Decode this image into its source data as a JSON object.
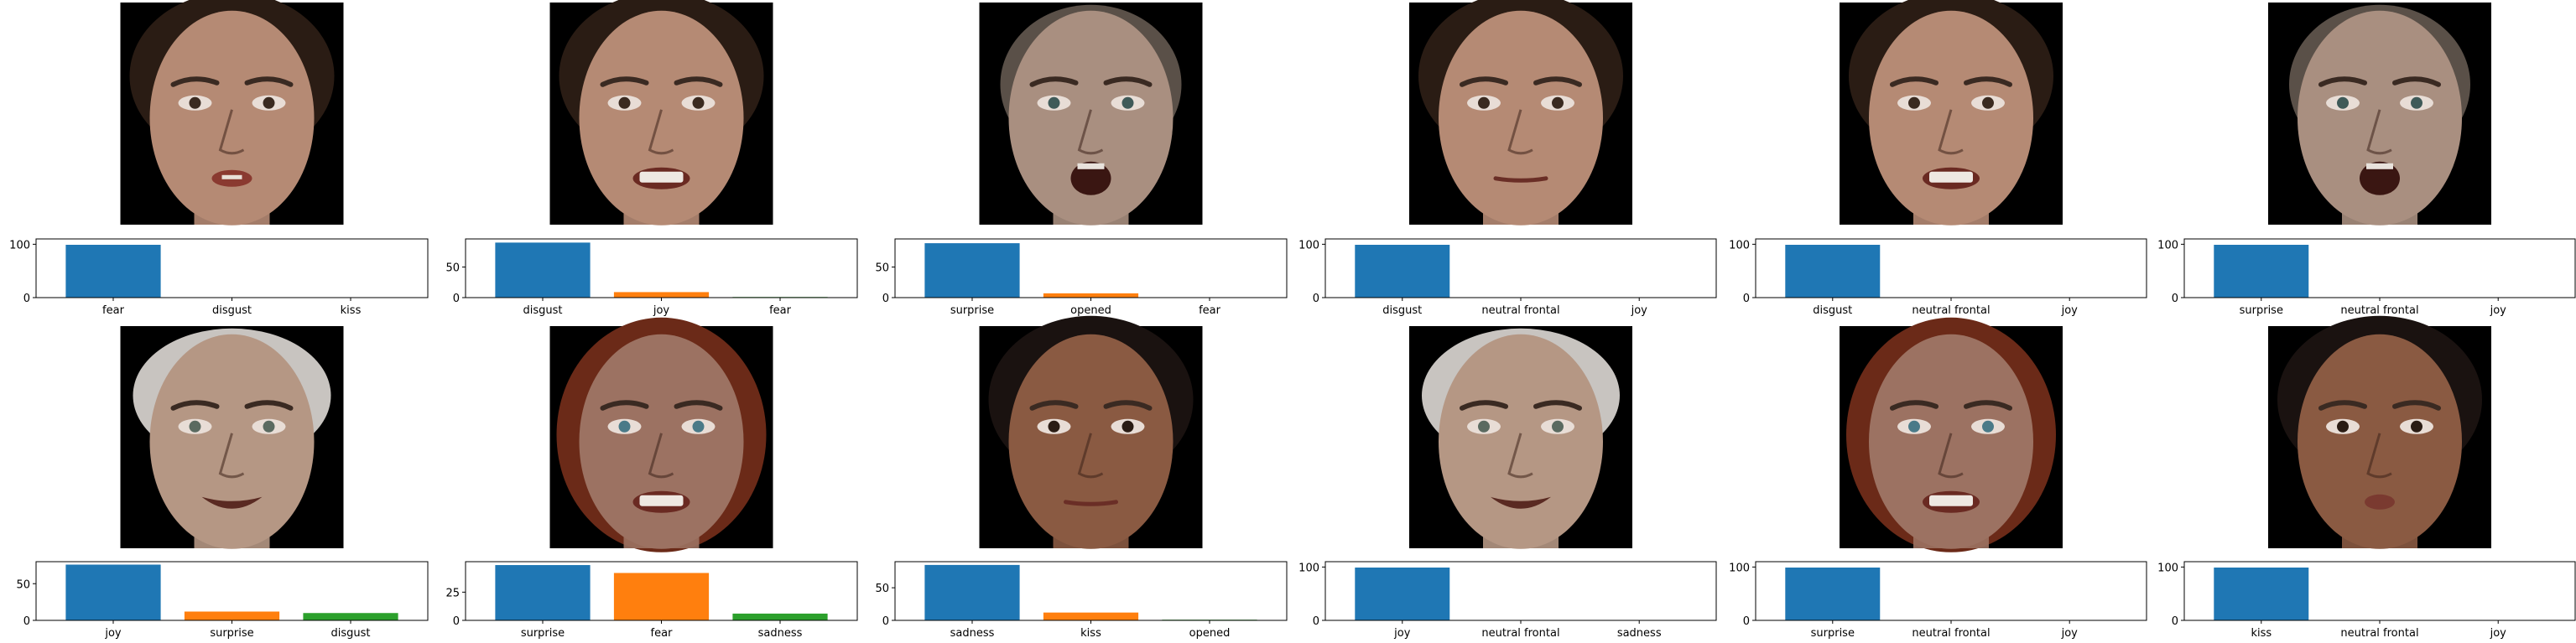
{
  "palette": {
    "c0": "#1f77b4",
    "c1": "#ff7f0e",
    "c2": "#2ca02c",
    "face_bg": "#000000"
  },
  "panels": [
    {
      "face": {
        "skin": "#b58a74",
        "hair": "#2a1c14",
        "hair_style": "short-dark",
        "eye": "#3a2a20",
        "mouth": "small-open"
      },
      "chart_data": {
        "type": "bar",
        "categories": [
          "fear",
          "disgust",
          "kiss"
        ],
        "values": [
          99,
          0,
          0
        ],
        "yticks": [
          "0",
          "100"
        ],
        "ylim": [
          0,
          110
        ]
      }
    },
    {
      "face": {
        "skin": "#b58a74",
        "hair": "#2a1c14",
        "hair_style": "short-dark",
        "eye": "#3a2a20",
        "mouth": "teeth"
      },
      "chart_data": {
        "type": "bar",
        "categories": [
          "disgust",
          "joy",
          "fear"
        ],
        "values": [
          90,
          9,
          1
        ],
        "yticks": [
          "0",
          "50"
        ],
        "ylim": [
          0,
          96
        ]
      }
    },
    {
      "face": {
        "skin": "#a98f80",
        "hair": "#5a5048",
        "hair_style": "receding",
        "eye": "#3f5a58",
        "mouth": "open-o"
      },
      "chart_data": {
        "type": "bar",
        "categories": [
          "surprise",
          "opened",
          "fear"
        ],
        "values": [
          89,
          7,
          0
        ],
        "yticks": [
          "0",
          "50"
        ],
        "ylim": [
          0,
          96
        ]
      }
    },
    {
      "face": {
        "skin": "#b58a74",
        "hair": "#2a1c14",
        "hair_style": "short-dark",
        "eye": "#3a2a20",
        "mouth": "closed"
      },
      "chart_data": {
        "type": "bar",
        "categories": [
          "disgust",
          "neutral frontal",
          "joy"
        ],
        "values": [
          99,
          0,
          0
        ],
        "yticks": [
          "0",
          "100"
        ],
        "ylim": [
          0,
          110
        ]
      }
    },
    {
      "face": {
        "skin": "#b58a74",
        "hair": "#2a1c14",
        "hair_style": "short-dark",
        "eye": "#3a2a20",
        "mouth": "teeth"
      },
      "chart_data": {
        "type": "bar",
        "categories": [
          "disgust",
          "neutral frontal",
          "joy"
        ],
        "values": [
          99,
          0,
          0
        ],
        "yticks": [
          "0",
          "100"
        ],
        "ylim": [
          0,
          110
        ]
      }
    },
    {
      "face": {
        "skin": "#a98f80",
        "hair": "#5a5048",
        "hair_style": "receding",
        "eye": "#3f5a58",
        "mouth": "open-o"
      },
      "chart_data": {
        "type": "bar",
        "categories": [
          "surprise",
          "neutral frontal",
          "joy"
        ],
        "values": [
          99,
          0,
          0
        ],
        "yticks": [
          "0",
          "100"
        ],
        "ylim": [
          0,
          110
        ]
      }
    },
    {
      "face": {
        "skin": "#b59784",
        "hair": "#c8c4c0",
        "hair_style": "white",
        "eye": "#5a6a60",
        "mouth": "smile"
      },
      "chart_data": {
        "type": "bar",
        "categories": [
          "joy",
          "surprise",
          "disgust"
        ],
        "values": [
          76,
          12,
          10
        ],
        "yticks": [
          "0",
          "50"
        ],
        "ylim": [
          0,
          80
        ]
      }
    },
    {
      "face": {
        "skin": "#9c7262",
        "hair": "#6b2a18",
        "hair_style": "red",
        "eye": "#4a7a88",
        "mouth": "teeth"
      },
      "chart_data": {
        "type": "bar",
        "categories": [
          "surprise",
          "fear",
          "sadness"
        ],
        "values": [
          49,
          42,
          6
        ],
        "yticks": [
          "0",
          "25"
        ],
        "ylim": [
          0,
          52
        ]
      }
    },
    {
      "face": {
        "skin": "#8a5a42",
        "hair": "#1a1210",
        "hair_style": "short-dark",
        "eye": "#2a1c14",
        "mouth": "closed"
      },
      "chart_data": {
        "type": "bar",
        "categories": [
          "sadness",
          "kiss",
          "opened"
        ],
        "values": [
          85,
          12,
          1
        ],
        "yticks": [
          "0",
          "50"
        ],
        "ylim": [
          0,
          90
        ]
      }
    },
    {
      "face": {
        "skin": "#b59784",
        "hair": "#c8c4c0",
        "hair_style": "white",
        "eye": "#5a6a60",
        "mouth": "smile"
      },
      "chart_data": {
        "type": "bar",
        "categories": [
          "joy",
          "neutral frontal",
          "sadness"
        ],
        "values": [
          99,
          0,
          0
        ],
        "yticks": [
          "0",
          "100"
        ],
        "ylim": [
          0,
          110
        ]
      }
    },
    {
      "face": {
        "skin": "#9c7262",
        "hair": "#6b2a18",
        "hair_style": "red",
        "eye": "#4a7a88",
        "mouth": "teeth"
      },
      "chart_data": {
        "type": "bar",
        "categories": [
          "surprise",
          "neutral frontal",
          "joy"
        ],
        "values": [
          99,
          0,
          0
        ],
        "yticks": [
          "0",
          "100"
        ],
        "ylim": [
          0,
          110
        ]
      }
    },
    {
      "face": {
        "skin": "#8a5a42",
        "hair": "#1a1210",
        "hair_style": "short-dark",
        "eye": "#2a1c14",
        "mouth": "pursed"
      },
      "chart_data": {
        "type": "bar",
        "categories": [
          "kiss",
          "neutral frontal",
          "joy"
        ],
        "values": [
          99,
          0,
          0
        ],
        "yticks": [
          "0",
          "100"
        ],
        "ylim": [
          0,
          110
        ]
      }
    }
  ]
}
